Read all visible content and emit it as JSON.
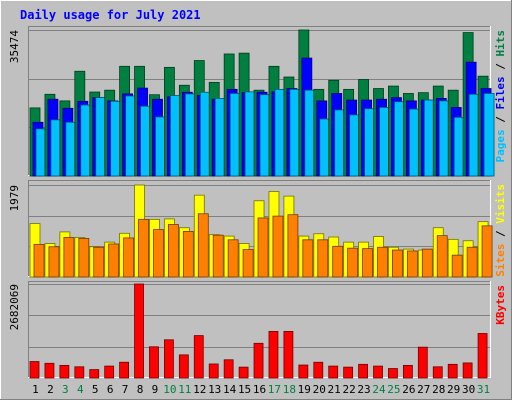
{
  "chart_data": {
    "type": "bar",
    "title": "Daily usage for July 2021",
    "categories": [
      "1",
      "2",
      "3",
      "4",
      "5",
      "6",
      "7",
      "8",
      "9",
      "10",
      "11",
      "12",
      "13",
      "14",
      "15",
      "16",
      "17",
      "18",
      "19",
      "20",
      "21",
      "22",
      "23",
      "24",
      "25",
      "26",
      "27",
      "28",
      "29",
      "30",
      "31"
    ],
    "weekend_categories": [
      "3",
      "4",
      "10",
      "11",
      "17",
      "18",
      "24",
      "25",
      "31"
    ],
    "panels": [
      {
        "name": "hits-files-pages",
        "ymax_label": "35474",
        "ylim": [
          0,
          35474
        ],
        "axis_labels": [
          {
            "text": "Pages",
            "color": "#00c0ff"
          },
          {
            "text": "Files",
            "color": "#0000ff"
          },
          {
            "text": "Hits",
            "color": "#008040"
          }
        ],
        "series": [
          {
            "name": "Hits",
            "color": "#008040",
            "values": [
              16550,
              19850,
              18250,
              25450,
              20400,
              20850,
              26650,
              26650,
              19750,
              26400,
              22050,
              28050,
              22750,
              29650,
              29850,
              20850,
              26650,
              24050,
              35474,
              21050,
              23250,
              21050,
              23450,
              21250,
              21850,
              20050,
              20250,
              21850,
              20850,
              34850,
              24250
            ]
          },
          {
            "name": "Files",
            "color": "#0000ff",
            "values": [
              13050,
              18650,
              16450,
              18150,
              19050,
              18250,
              19950,
              21350,
              18650,
              19250,
              20350,
              19550,
              18650,
              21050,
              20250,
              20350,
              20450,
              21250,
              28650,
              18250,
              20050,
              18450,
              18450,
              18650,
              19050,
              18250,
              18450,
              18850,
              16650,
              27650,
              21250
            ]
          },
          {
            "name": "Pages",
            "color": "#00c0ff",
            "values": [
              11450,
              13650,
              13050,
              17250,
              19050,
              18150,
              19450,
              16950,
              14350,
              19550,
              19950,
              20350,
              18850,
              20050,
              20450,
              19750,
              21050,
              21050,
              20850,
              13850,
              16050,
              14850,
              16350,
              16650,
              18050,
              16250,
              18450,
              18250,
              14250,
              19850,
              20050
            ]
          }
        ]
      },
      {
        "name": "visits-sites",
        "ymax_label": "1979",
        "ylim": [
          0,
          1979
        ],
        "axis_labels": [
          {
            "text": "Sites",
            "color": "#ff8000"
          },
          {
            "text": "Visits",
            "color": "#ffff00"
          }
        ],
        "series": [
          {
            "name": "Visits",
            "color": "#ffff00",
            "values": [
              1150,
              720,
              970,
              850,
              650,
              750,
              940,
              1979,
              1240,
              1250,
              1060,
              1760,
              910,
              880,
              720,
              1640,
              1840,
              1740,
              880,
              930,
              860,
              750,
              750,
              870,
              640,
              600,
              580,
              1060,
              810,
              780,
              1190
            ]
          },
          {
            "name": "Sites",
            "color": "#ff8000",
            "values": [
              700,
              650,
              850,
              830,
              640,
              710,
              840,
              1240,
              1020,
              1130,
              980,
              1360,
              900,
              800,
              590,
              1270,
              1310,
              1340,
              800,
              800,
              660,
              620,
              610,
              640,
              580,
              560,
              600,
              890,
              470,
              640,
              1100
            ]
          }
        ]
      },
      {
        "name": "kbytes",
        "ymax_label": "2682069",
        "ylim": [
          0,
          2682069
        ],
        "axis_labels": [
          {
            "text": "KBytes",
            "color": "#ff0000"
          }
        ],
        "series": [
          {
            "name": "KBytes",
            "color": "#ff0000",
            "values": [
              470000,
              420000,
              360000,
              320000,
              240000,
              340000,
              450000,
              2682069,
              890000,
              1090000,
              660000,
              1210000,
              400000,
              520000,
              310000,
              990000,
              1330000,
              1330000,
              370000,
              450000,
              340000,
              310000,
              390000,
              340000,
              270000,
              360000,
              880000,
              320000,
              390000,
              430000,
              1270000
            ]
          }
        ]
      }
    ]
  }
}
